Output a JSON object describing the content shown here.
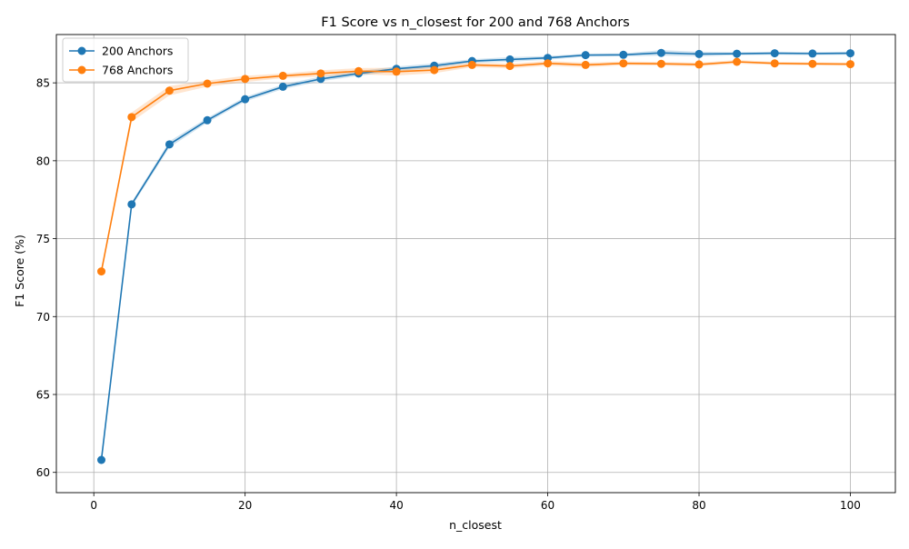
{
  "chart_data": {
    "type": "line",
    "title": "F1 Score vs n_closest for 200 and 768 Anchors",
    "xlabel": "n_closest",
    "ylabel": "F1 Score (%)",
    "xlim": [
      -4.95,
      105.95
    ],
    "ylim": [
      58.7,
      88.1
    ],
    "xticks": [
      0,
      20,
      40,
      60,
      80,
      100
    ],
    "yticks": [
      60,
      65,
      70,
      75,
      80,
      85
    ],
    "grid": true,
    "legend_position": "top-left",
    "x": [
      1,
      5,
      10,
      15,
      20,
      25,
      30,
      35,
      40,
      45,
      50,
      55,
      60,
      65,
      70,
      75,
      80,
      85,
      90,
      95,
      100
    ],
    "series": [
      {
        "name": "200 Anchors",
        "color": "#1f77b4",
        "values": [
          60.8,
          77.2,
          81.05,
          82.6,
          83.95,
          84.75,
          85.25,
          85.6,
          85.9,
          86.1,
          86.4,
          86.5,
          86.6,
          86.78,
          86.8,
          86.92,
          86.85,
          86.87,
          86.9,
          86.88,
          86.9
        ],
        "band": [
          0.1,
          0.15,
          0.2,
          0.15,
          0.15,
          0.15,
          0.15,
          0.15,
          0.15,
          0.15,
          0.12,
          0.15,
          0.12,
          0.1,
          0.1,
          0.18,
          0.15,
          0.1,
          0.1,
          0.1,
          0.1
        ]
      },
      {
        "name": "768 Anchors",
        "color": "#ff7f0e",
        "values": [
          72.9,
          82.8,
          84.5,
          84.95,
          85.25,
          85.45,
          85.6,
          85.75,
          85.72,
          85.82,
          86.15,
          86.08,
          86.25,
          86.15,
          86.25,
          86.22,
          86.18,
          86.35,
          86.25,
          86.22,
          86.2
        ],
        "band": [
          0.1,
          0.3,
          0.3,
          0.2,
          0.2,
          0.15,
          0.2,
          0.2,
          0.25,
          0.2,
          0.15,
          0.15,
          0.15,
          0.15,
          0.12,
          0.12,
          0.12,
          0.12,
          0.1,
          0.1,
          0.1
        ]
      }
    ]
  }
}
